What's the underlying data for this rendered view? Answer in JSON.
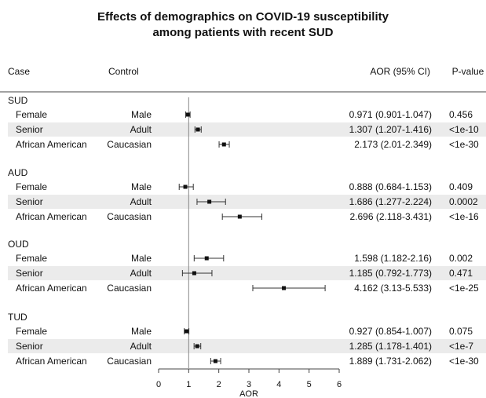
{
  "title_lines": [
    "Effects of demographics on COVID-19 susceptibility",
    "among patients with recent SUD"
  ],
  "chart_data": {
    "type": "forest",
    "title": "Effects of demographics on COVID-19 susceptibility among patients with recent SUD",
    "columns": {
      "case": "Case",
      "control": "Control",
      "aor": "AOR (95% CI)",
      "pvalue": "P-value"
    },
    "xlabel": "AOR",
    "xlim": [
      0,
      6
    ],
    "xticks": [
      0,
      1,
      2,
      3,
      4,
      5,
      6
    ],
    "reference_line": 1,
    "groups": [
      {
        "name": "SUD",
        "rows": [
          {
            "case": "Female",
            "control": "Male",
            "aor": 0.971,
            "lo": 0.901,
            "hi": 1.047,
            "aor_text": "0.971 (0.901-1.047)",
            "p": "0.456"
          },
          {
            "case": "Senior",
            "control": "Adult",
            "aor": 1.307,
            "lo": 1.207,
            "hi": 1.416,
            "aor_text": "1.307 (1.207-1.416)",
            "p": "<1e-10"
          },
          {
            "case": "African American",
            "control": "Caucasian",
            "aor": 2.173,
            "lo": 2.01,
            "hi": 2.349,
            "aor_text": "2.173 (2.01-2.349)",
            "p": "<1e-30"
          }
        ]
      },
      {
        "name": "AUD",
        "rows": [
          {
            "case": "Female",
            "control": "Male",
            "aor": 0.888,
            "lo": 0.684,
            "hi": 1.153,
            "aor_text": "0.888 (0.684-1.153)",
            "p": "0.409"
          },
          {
            "case": "Senior",
            "control": "Adult",
            "aor": 1.686,
            "lo": 1.277,
            "hi": 2.224,
            "aor_text": "1.686 (1.277-2.224)",
            "p": "0.0002"
          },
          {
            "case": "African American",
            "control": "Caucasian",
            "aor": 2.696,
            "lo": 2.118,
            "hi": 3.431,
            "aor_text": "2.696 (2.118-3.431)",
            "p": "<1e-16"
          }
        ]
      },
      {
        "name": "OUD",
        "rows": [
          {
            "case": "Female",
            "control": "Male",
            "aor": 1.598,
            "lo": 1.182,
            "hi": 2.16,
            "aor_text": "1.598 (1.182-2.16)",
            "p": "0.002"
          },
          {
            "case": "Senior",
            "control": "Adult",
            "aor": 1.185,
            "lo": 0.792,
            "hi": 1.773,
            "aor_text": "1.185 (0.792-1.773)",
            "p": "0.471"
          },
          {
            "case": "African American",
            "control": "Caucasian",
            "aor": 4.162,
            "lo": 3.13,
            "hi": 5.533,
            "aor_text": "4.162 (3.13-5.533)",
            "p": "<1e-25"
          }
        ]
      },
      {
        "name": "TUD",
        "rows": [
          {
            "case": "Female",
            "control": "Male",
            "aor": 0.927,
            "lo": 0.854,
            "hi": 1.007,
            "aor_text": "0.927 (0.854-1.007)",
            "p": "0.075"
          },
          {
            "case": "Senior",
            "control": "Adult",
            "aor": 1.285,
            "lo": 1.178,
            "hi": 1.401,
            "aor_text": "1.285 (1.178-1.401)",
            "p": "<1e-7"
          },
          {
            "case": "African American",
            "control": "Caucasian",
            "aor": 1.889,
            "lo": 1.731,
            "hi": 2.062,
            "aor_text": "1.889 (1.731-2.062)",
            "p": "<1e-30"
          }
        ]
      }
    ],
    "colors": {
      "stripe": "#ebebeb",
      "marker": "#111111",
      "ci_line": "#333333",
      "ref_line": "#888888",
      "rule": "#444444"
    }
  }
}
